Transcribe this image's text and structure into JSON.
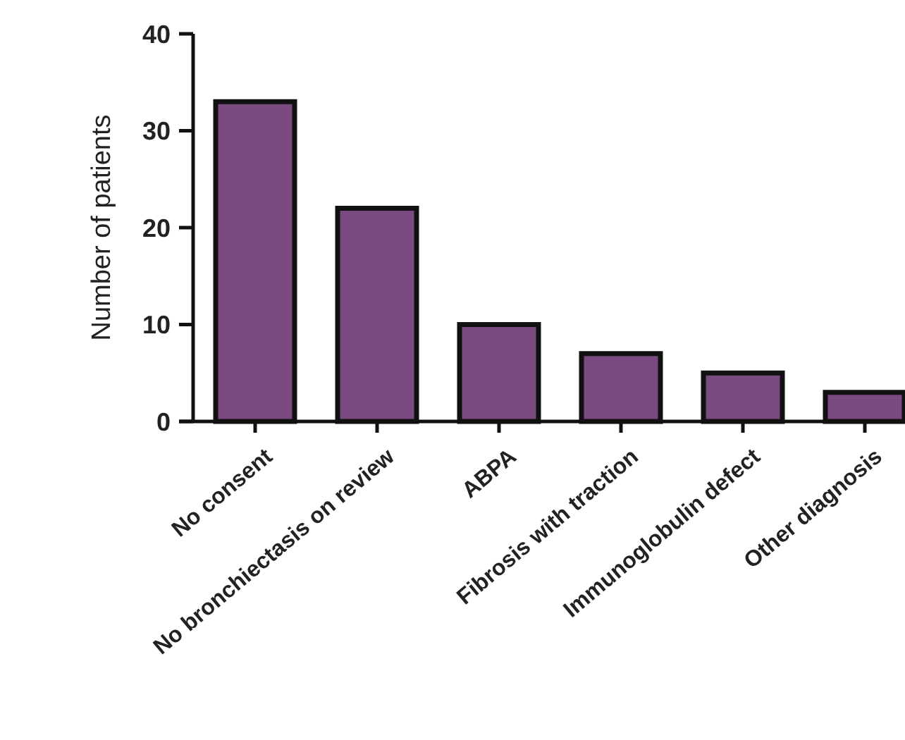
{
  "chart_data": {
    "type": "bar",
    "ylabel": "Number of patients",
    "categories": [
      "No consent",
      "No bronchiectasis on review",
      "ABPA",
      "Fibrosis with traction",
      "Immunoglobulin defect",
      "Other diagnosis"
    ],
    "values": [
      33,
      22,
      10,
      7,
      5,
      3
    ],
    "color": "#7b4a80",
    "ylim": [
      0,
      40
    ],
    "yticks": [
      0,
      10,
      20,
      30,
      40
    ],
    "grid": false
  }
}
